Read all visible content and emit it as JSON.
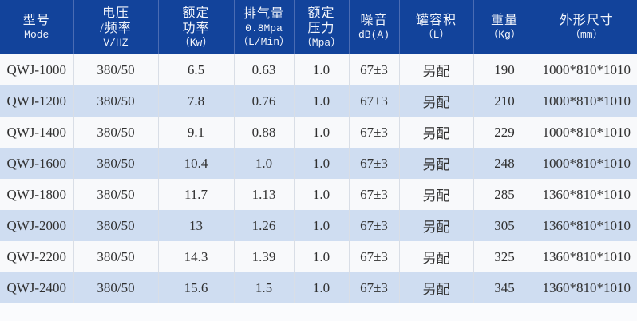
{
  "table": {
    "columns": [
      {
        "id": "model",
        "header_lines": [
          "型号",
          "Mode"
        ]
      },
      {
        "id": "voltage",
        "header_lines": [
          "电压",
          "/频率",
          "V/HZ"
        ]
      },
      {
        "id": "rated-power",
        "header_lines": [
          "额定",
          "功率",
          "（Kw）"
        ]
      },
      {
        "id": "displacement",
        "header_lines": [
          "排气量",
          "0.8Mpa",
          "（L/Min）"
        ]
      },
      {
        "id": "rated-pressure",
        "header_lines": [
          "额定",
          "压力",
          "（Mpa）"
        ]
      },
      {
        "id": "noise",
        "header_lines": [
          "噪音",
          "dB(A)"
        ]
      },
      {
        "id": "tank-volume",
        "header_lines": [
          "罐容积",
          "（L）"
        ]
      },
      {
        "id": "weight",
        "header_lines": [
          "重量",
          "（Kg）"
        ]
      },
      {
        "id": "dimensions",
        "header_lines": [
          "外形尺寸",
          "（mm）"
        ]
      }
    ],
    "rows": [
      [
        "QWJ-1000",
        "380/50",
        "6.5",
        "0.63",
        "1.0",
        "67±3",
        "另配",
        "190",
        "1000*810*1010"
      ],
      [
        "QWJ-1200",
        "380/50",
        "7.8",
        "0.76",
        "1.0",
        "67±3",
        "另配",
        "210",
        "1000*810*1010"
      ],
      [
        "QWJ-1400",
        "380/50",
        "9.1",
        "0.88",
        "1.0",
        "67±3",
        "另配",
        "229",
        "1000*810*1010"
      ],
      [
        "QWJ-1600",
        "380/50",
        "10.4",
        "1.0",
        "1.0",
        "67±3",
        "另配",
        "248",
        "1000*810*1010"
      ],
      [
        "QWJ-1800",
        "380/50",
        "11.7",
        "1.13",
        "1.0",
        "67±3",
        "另配",
        "285",
        "1360*810*1010"
      ],
      [
        "QWJ-2000",
        "380/50",
        "13",
        "1.26",
        "1.0",
        "67±3",
        "另配",
        "305",
        "1360*810*1010"
      ],
      [
        "QWJ-2200",
        "380/50",
        "14.3",
        "1.39",
        "1.0",
        "67±3",
        "另配",
        "325",
        "1360*810*1010"
      ],
      [
        "QWJ-2400",
        "380/50",
        "15.6",
        "1.5",
        "1.0",
        "67±3",
        "另配",
        "345",
        "1360*810*1010"
      ]
    ]
  },
  "colors": {
    "header_bg": "#12439b",
    "header_text": "#f2f5fb",
    "header_divider": "#4a6cb3",
    "row_light": "#f8f9fb",
    "row_blue": "#cfddf1",
    "body_divider": "#d9dee6",
    "body_text": "#303030",
    "strip_bg": "#fafbfd"
  }
}
